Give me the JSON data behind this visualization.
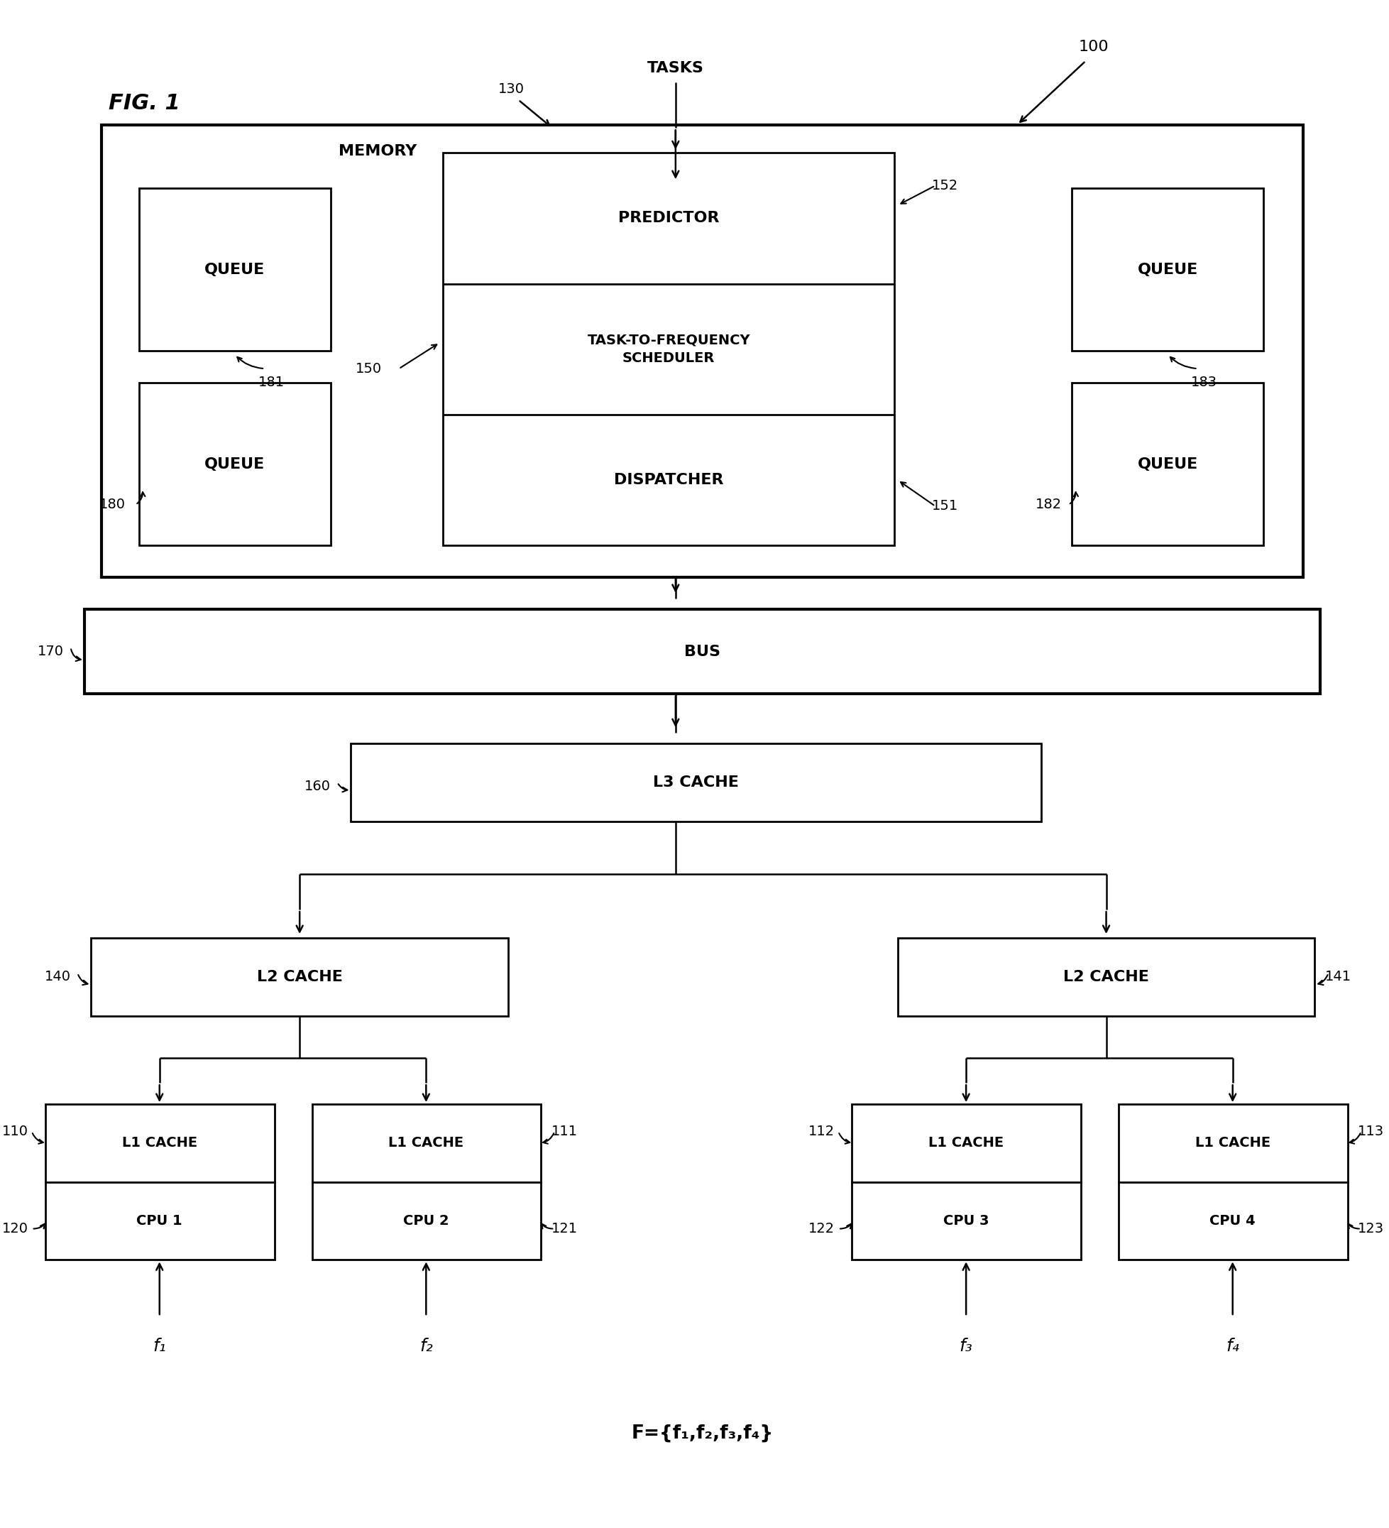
{
  "fig_label": "FIG. 1",
  "ref_100": "100",
  "ref_130": "130",
  "ref_170": "170",
  "ref_160": "160",
  "ref_150": "150",
  "ref_152": "152",
  "ref_151": "151",
  "ref_180": "180",
  "ref_181": "181",
  "ref_182": "182",
  "ref_183": "183",
  "ref_140": "140",
  "ref_141": "141",
  "ref_110": "110",
  "ref_111": "111",
  "ref_112": "112",
  "ref_113": "113",
  "ref_120": "120",
  "ref_121": "121",
  "ref_122": "122",
  "ref_123": "123",
  "label_tasks": "TASKS",
  "label_memory": "MEMORY",
  "label_bus": "BUS",
  "label_l3cache": "L3 CACHE",
  "label_l2cache": "L2 CACHE",
  "label_predictor": "PREDICTOR",
  "label_scheduler": "TASK-TO-FREQUENCY\nSCHEDULER",
  "label_dispatcher": "DISPATCHER",
  "label_queue": "QUEUE",
  "label_l1cache": "L1 CACHE",
  "label_cpu1": "CPU 1",
  "label_cpu2": "CPU 2",
  "label_cpu3": "CPU 3",
  "label_cpu4": "CPU 4",
  "label_f1": "f₁",
  "label_f2": "f₂",
  "label_f3": "f₃",
  "label_f4": "f₄",
  "label_F": "F={f₁,f₂,f₃,f₄}",
  "bg_color": "#ffffff",
  "box_color": "#000000",
  "text_color": "#000000",
  "lw_thick": 3.0,
  "lw_medium": 2.0,
  "lw_thin": 1.5,
  "fs_title": 20,
  "fs_main": 16,
  "fs_small": 14,
  "fs_ref": 14,
  "fs_fig": 22
}
